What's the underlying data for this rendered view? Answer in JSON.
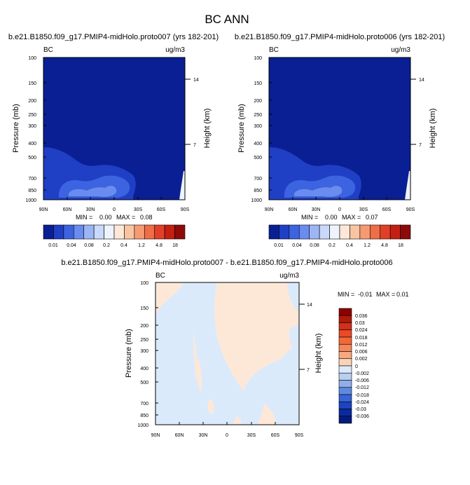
{
  "figure_title": "BC ANN",
  "chart_data": [
    {
      "type": "heatmap",
      "name": "left",
      "title": "b.e21.B1850.f09_g17.PMIP4-midHolo.proto007 (yrs 182-201)",
      "variable": "BC",
      "units": "ug/m3",
      "xlabel": "",
      "ylabel": "Pressure (mb)",
      "ylabel_right": "Height (km)",
      "x_ticks": [
        "90N",
        "60N",
        "30N",
        "0",
        "30S",
        "60S",
        "90S"
      ],
      "y_ticks": [
        "100",
        "150",
        "200",
        "250",
        "300",
        "400",
        "500",
        "700",
        "850",
        "1000"
      ],
      "y_ticks_right": [
        "14",
        "7"
      ],
      "ylim": [
        1000,
        100
      ],
      "min_label": "MIN =",
      "min": "0.00",
      "max_label": "MAX =",
      "max": "0.08",
      "colorbar_labels": [
        "0.01",
        "0.04",
        "0.08",
        "0.2",
        "0.4",
        "1.2",
        "4.8",
        "18"
      ],
      "colorbar_colors": [
        "#0a1f93",
        "#1f3fc4",
        "#3c63e0",
        "#6b8cef",
        "#9db5f5",
        "#c9d9fb",
        "#eef3fe",
        "#fde8d8",
        "#f9c4a2",
        "#f59a72",
        "#ef6d47",
        "#e04027",
        "#c51f14",
        "#8e0a0a"
      ]
    },
    {
      "type": "heatmap",
      "name": "right",
      "title": "b.e21.B1850.f09_g17.PMIP4-midHolo.proto006 (yrs 182-201)",
      "variable": "BC",
      "units": "ug/m3",
      "xlabel": "",
      "ylabel": "Pressure (mb)",
      "ylabel_right": "Height (km)",
      "x_ticks": [
        "90N",
        "60N",
        "30N",
        "0",
        "30S",
        "60S",
        "90S"
      ],
      "y_ticks": [
        "100",
        "150",
        "200",
        "250",
        "300",
        "400",
        "500",
        "700",
        "850",
        "1000"
      ],
      "y_ticks_right": [
        "14",
        "7"
      ],
      "ylim": [
        1000,
        100
      ],
      "min_label": "MIN =",
      "min": "0.00",
      "max_label": "MAX =",
      "max": "0.07",
      "colorbar_labels": [
        "0.01",
        "0.04",
        "0.08",
        "0.2",
        "0.4",
        "1.2",
        "4.8",
        "18"
      ],
      "colorbar_colors": [
        "#0a1f93",
        "#1f3fc4",
        "#3c63e0",
        "#6b8cef",
        "#9db5f5",
        "#c9d9fb",
        "#eef3fe",
        "#fde8d8",
        "#f9c4a2",
        "#f59a72",
        "#ef6d47",
        "#e04027",
        "#c51f14",
        "#8e0a0a"
      ]
    },
    {
      "type": "heatmap",
      "name": "diff",
      "title": "b.e21.B1850.f09_g17.PMIP4-midHolo.proto007 - b.e21.B1850.f09_g17.PMIP4-midHolo.proto006",
      "variable": "BC",
      "units": "ug/m3",
      "xlabel": "",
      "ylabel": "Pressure (mb)",
      "ylabel_right": "Height (km)",
      "x_ticks": [
        "90N",
        "60N",
        "30N",
        "0",
        "30S",
        "60S",
        "90S"
      ],
      "y_ticks": [
        "100",
        "150",
        "200",
        "250",
        "300",
        "400",
        "500",
        "700",
        "850",
        "1000"
      ],
      "y_ticks_right": [
        "14",
        "7"
      ],
      "ylim": [
        1000,
        100
      ],
      "min_label": "MIN =",
      "min": "-0.01",
      "max_label": "MAX =",
      "max": "0.01",
      "colorbar_labels": [
        "0.036",
        "0.03",
        "0.024",
        "0.018",
        "0.012",
        "0.006",
        "0.002",
        "0",
        "-0.002",
        "-0.006",
        "-0.012",
        "-0.018",
        "-0.024",
        "-0.03",
        "-0.036"
      ],
      "colorbar_colors": [
        "#8b0000",
        "#b01a0a",
        "#d2301a",
        "#ea4a26",
        "#f26838",
        "#f5875a",
        "#f8a880",
        "#fbd2b6",
        "#dbeafb",
        "#b9cff2",
        "#8fafe9",
        "#5f89df",
        "#3964d6",
        "#1c43c2",
        "#0a2a9e",
        "#061a7d"
      ]
    }
  ]
}
